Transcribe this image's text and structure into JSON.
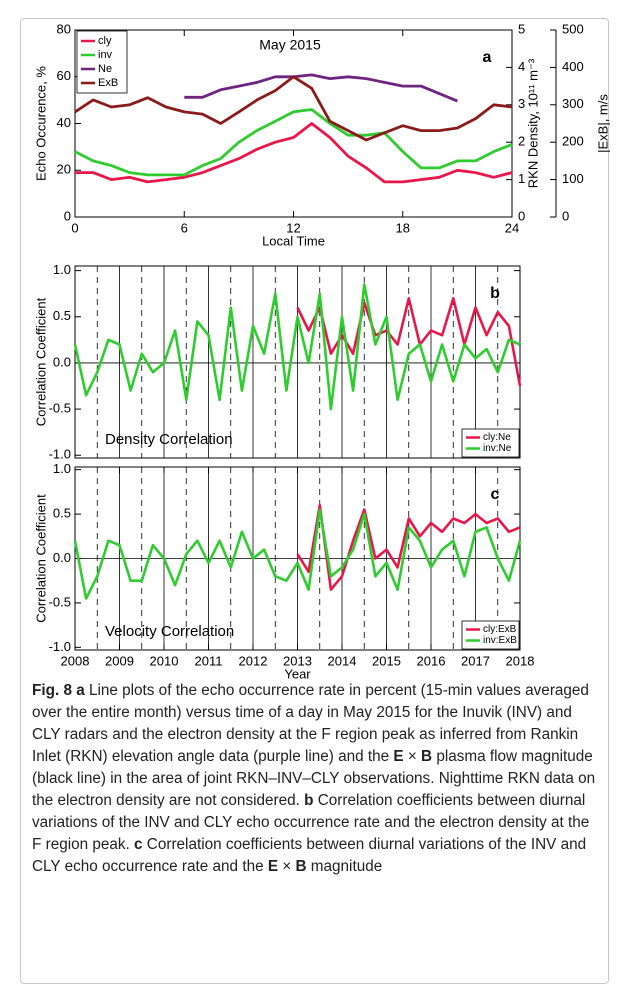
{
  "chart_data": [
    {
      "type": "line",
      "title": "May 2015",
      "panel_label": "a",
      "xlabel": "Local Time",
      "ylabel": "Echo Occurence, %",
      "y2label": "RKN Density, 10¹¹ m⁻³",
      "y3label": "|ExB|, m/s",
      "legend_loc": "upper left",
      "xlim": [
        0,
        24
      ],
      "xticks": [
        0,
        6,
        12,
        18,
        24
      ],
      "ylim": [
        0,
        80
      ],
      "yticks": [
        0,
        20,
        40,
        60,
        80
      ],
      "y2lim": [
        0,
        5
      ],
      "y2ticks": [
        0,
        1,
        2,
        3,
        4,
        5
      ],
      "y3lim": [
        0,
        500
      ],
      "y3ticks": [
        0,
        100,
        200,
        300,
        400,
        500
      ],
      "x": [
        0,
        1,
        2,
        3,
        4,
        5,
        6,
        7,
        8,
        9,
        10,
        11,
        12,
        13,
        14,
        15,
        16,
        17,
        18,
        19,
        20,
        21,
        22,
        23,
        24
      ],
      "series": [
        {
          "name": "cly",
          "color": "#e8174a",
          "axis": "y",
          "values": [
            19,
            19,
            16,
            17,
            15,
            16,
            17,
            19,
            22,
            25,
            29,
            32,
            34,
            40,
            34,
            26,
            21,
            15,
            15,
            16,
            17,
            20,
            19,
            17,
            19
          ]
        },
        {
          "name": "inv",
          "color": "#2fcc2f",
          "axis": "y",
          "values": [
            28,
            24,
            22,
            19,
            18,
            18,
            18,
            22,
            25,
            32,
            37,
            41,
            45,
            46,
            40,
            35,
            35,
            36,
            28,
            21,
            21,
            24,
            24,
            28,
            31
          ]
        },
        {
          "name": "Ne",
          "color": "#6e2580",
          "axis": "y2",
          "values": [
            null,
            null,
            null,
            null,
            null,
            null,
            3.2,
            3.2,
            3.4,
            3.5,
            3.6,
            3.75,
            3.75,
            3.8,
            3.7,
            3.75,
            3.7,
            3.6,
            3.5,
            3.5,
            3.3,
            3.1,
            null,
            null,
            null
          ]
        },
        {
          "name": "ExB",
          "color": "#8b1a1a",
          "axis": "y3",
          "values": [
            281,
            313,
            294,
            300,
            319,
            294,
            281,
            275,
            250,
            281,
            313,
            338,
            375,
            344,
            256,
            231,
            206,
            225,
            244,
            231,
            231,
            238,
            263,
            300,
            294
          ]
        }
      ]
    },
    {
      "type": "line",
      "panel_label": "b",
      "ylabel": "Correlation Coefficient",
      "annotation": "Density Correlation",
      "legend_loc": "lower right",
      "zero_line": true,
      "xlim": [
        2008,
        2018
      ],
      "xgrid": [
        2008,
        2009,
        2010,
        2011,
        2012,
        2013,
        2014,
        2015,
        2016,
        2017,
        2018
      ],
      "xgrid_dashed": [
        2008.5,
        2009.5,
        2010.5,
        2011.5,
        2012.5,
        2013.5,
        2014.5,
        2015.5,
        2016.5,
        2017.5
      ],
      "ylim": [
        -1.03,
        1.05
      ],
      "yticks": [
        {
          "value": -1,
          "label": "-1.0"
        },
        {
          "value": -0.5,
          "label": "-0.5"
        },
        {
          "value": 0,
          "label": "0.0"
        },
        {
          "value": 0.5,
          "label": "0.5"
        },
        {
          "value": 1,
          "label": "1.0"
        }
      ],
      "x": [
        2008,
        2008.25,
        2008.5,
        2008.75,
        2009,
        2009.25,
        2009.5,
        2009.75,
        2010,
        2010.25,
        2010.5,
        2010.75,
        2011,
        2011.25,
        2011.5,
        2011.75,
        2012,
        2012.25,
        2012.5,
        2012.75,
        2013,
        2013.25,
        2013.5,
        2013.75,
        2014,
        2014.25,
        2014.5,
        2014.75,
        2015,
        2015.25,
        2015.5,
        2015.75,
        2016,
        2016.25,
        2016.5,
        2016.75,
        2017,
        2017.25,
        2017.5,
        2017.75,
        2018
      ],
      "series": [
        {
          "name": "cly:Ne",
          "color": "#e8174a",
          "values": [
            null,
            null,
            null,
            null,
            null,
            null,
            null,
            null,
            null,
            null,
            null,
            null,
            null,
            null,
            null,
            null,
            null,
            null,
            null,
            null,
            0.6,
            0.35,
            0.6,
            0.1,
            0.3,
            0.1,
            0.65,
            0.3,
            0.35,
            0.2,
            0.7,
            0.2,
            0.35,
            0.3,
            0.7,
            0.2,
            0.6,
            0.3,
            0.55,
            0.4,
            -0.25
          ]
        },
        {
          "name": "inv:Ne",
          "color": "#2fcc2f",
          "values": [
            0.2,
            -0.35,
            -0.1,
            0.25,
            0.2,
            -0.3,
            0.1,
            -0.1,
            0,
            0.35,
            -0.4,
            0.45,
            0.3,
            -0.4,
            0.6,
            -0.3,
            0.4,
            0.1,
            0.75,
            -0.3,
            0.5,
            0,
            0.75,
            -0.5,
            0.5,
            -0.3,
            0.85,
            0.2,
            0.5,
            -0.4,
            0.1,
            0.2,
            -0.2,
            0.2,
            -0.2,
            0.2,
            0.05,
            0.15,
            -0.1,
            0.25,
            0.2
          ]
        }
      ]
    },
    {
      "type": "line",
      "panel_label": "c",
      "xlabel": "Year",
      "ylabel": "Correlation Coefficient",
      "annotation": "Velocity Correlation",
      "legend_loc": "lower right",
      "zero_line": true,
      "xlim": [
        2008,
        2018
      ],
      "xticks": [
        2008,
        2009,
        2010,
        2011,
        2012,
        2013,
        2014,
        2015,
        2016,
        2017,
        2018
      ],
      "xgrid": [
        2008,
        2009,
        2010,
        2011,
        2012,
        2013,
        2014,
        2015,
        2016,
        2017,
        2018
      ],
      "xgrid_dashed": [
        2008.5,
        2009.5,
        2010.5,
        2011.5,
        2012.5,
        2013.5,
        2014.5,
        2015.5,
        2016.5,
        2017.5
      ],
      "ylim": [
        -1.03,
        1.03
      ],
      "yticks": [
        {
          "value": -1,
          "label": "-1.0"
        },
        {
          "value": -0.5,
          "label": "-0.5"
        },
        {
          "value": 0,
          "label": "0.0"
        },
        {
          "value": 0.5,
          "label": "0.5"
        },
        {
          "value": 1,
          "label": "1.0"
        }
      ],
      "x": [
        2008,
        2008.25,
        2008.5,
        2008.75,
        2009,
        2009.25,
        2009.5,
        2009.75,
        2010,
        2010.25,
        2010.5,
        2010.75,
        2011,
        2011.25,
        2011.5,
        2011.75,
        2012,
        2012.25,
        2012.5,
        2012.75,
        2013,
        2013.25,
        2013.5,
        2013.75,
        2014,
        2014.25,
        2014.5,
        2014.75,
        2015,
        2015.25,
        2015.5,
        2015.75,
        2016,
        2016.25,
        2016.5,
        2016.75,
        2017,
        2017.25,
        2017.5,
        2017.75,
        2018
      ],
      "series": [
        {
          "name": "cly:ExB",
          "color": "#e8174a",
          "values": [
            null,
            null,
            null,
            null,
            null,
            null,
            null,
            null,
            null,
            null,
            null,
            null,
            null,
            null,
            null,
            null,
            null,
            null,
            null,
            null,
            0.05,
            -0.15,
            0.6,
            -0.35,
            -0.2,
            0.2,
            0.55,
            0,
            0.1,
            -0.1,
            0.45,
            0.25,
            0.4,
            0.3,
            0.45,
            0.4,
            0.5,
            0.4,
            0.45,
            0.3,
            0.35
          ]
        },
        {
          "name": "inv:ExB",
          "color": "#2fcc2f",
          "values": [
            0.2,
            -0.45,
            -0.2,
            0.2,
            0.15,
            -0.25,
            -0.25,
            0.15,
            0,
            -0.3,
            0.05,
            0.2,
            -0.05,
            0.2,
            -0.1,
            0.3,
            0,
            0.1,
            -0.2,
            -0.25,
            -0.05,
            -0.35,
            0.55,
            -0.2,
            -0.1,
            0.1,
            0.5,
            -0.2,
            -0.05,
            -0.35,
            0.35,
            0.2,
            -0.1,
            0.1,
            0.2,
            -0.2,
            0.3,
            0.35,
            0,
            -0.25,
            0.2
          ]
        }
      ]
    }
  ],
  "caption": {
    "segments": [
      {
        "text": "Fig. 8 a",
        "bold": true
      },
      {
        "text": " Line plots of the echo occurrence rate in percent (15-min values averaged over the entire month) versus time of a day in May 2015 for the Inuvik (INV) and CLY radars and the electron density at the F region peak as inferred from Rankin Inlet (RKN) elevation angle data (purple line) and the "
      },
      {
        "text": "E",
        "bold": true
      },
      {
        "text": " × "
      },
      {
        "text": "B",
        "bold": true
      },
      {
        "text": " plasma flow magnitude (black line) in the area of joint RKN–INV–CLY observations. Nighttime RKN data on the electron density are not considered. "
      },
      {
        "text": "b",
        "bold": true
      },
      {
        "text": " Correlation coefficients between diurnal variations of the INV and CLY echo occurrence rate and the electron density at the F region peak. "
      },
      {
        "text": "c",
        "bold": true
      },
      {
        "text": " Correlation coefficients between diurnal variations of the INV and CLY echo occurrence rate and the "
      },
      {
        "text": "E",
        "bold": true
      },
      {
        "text": " × "
      },
      {
        "text": "B",
        "bold": true
      },
      {
        "text": " magnitude"
      }
    ]
  }
}
